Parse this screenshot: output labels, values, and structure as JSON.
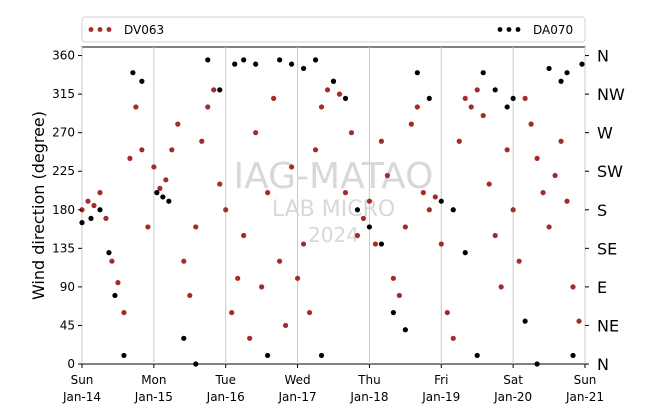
{
  "chart_data": {
    "type": "scatter",
    "title": "",
    "xlabel": "",
    "ylabel": "Wind direction (degree)",
    "xlim": [
      "2024-01-14 00:00",
      "2024-01-21 00:00"
    ],
    "ylim": [
      0,
      370
    ],
    "grid": "vertical lines at each day",
    "legend": "top, spanning plot width",
    "series": [
      {
        "name": "DV063",
        "color": "#a52a2a",
        "points": [
          [
            "2024-01-14 00:00",
            180
          ],
          [
            "2024-01-14 02:00",
            190
          ],
          [
            "2024-01-14 04:00",
            185
          ],
          [
            "2024-01-14 06:00",
            200
          ],
          [
            "2024-01-14 08:00",
            170
          ],
          [
            "2024-01-14 10:00",
            120
          ],
          [
            "2024-01-14 12:00",
            95
          ],
          [
            "2024-01-14 14:00",
            60
          ],
          [
            "2024-01-14 16:00",
            240
          ],
          [
            "2024-01-14 18:00",
            300
          ],
          [
            "2024-01-14 20:00",
            250
          ],
          [
            "2024-01-14 22:00",
            160
          ],
          [
            "2024-01-15 00:00",
            230
          ],
          [
            "2024-01-15 02:00",
            205
          ],
          [
            "2024-01-15 04:00",
            215
          ],
          [
            "2024-01-15 06:00",
            250
          ],
          [
            "2024-01-15 08:00",
            280
          ],
          [
            "2024-01-15 10:00",
            120
          ],
          [
            "2024-01-15 12:00",
            80
          ],
          [
            "2024-01-15 14:00",
            160
          ],
          [
            "2024-01-15 16:00",
            260
          ],
          [
            "2024-01-15 18:00",
            300
          ],
          [
            "2024-01-15 20:00",
            320
          ],
          [
            "2024-01-15 22:00",
            210
          ],
          [
            "2024-01-16 00:00",
            180
          ],
          [
            "2024-01-16 02:00",
            60
          ],
          [
            "2024-01-16 04:00",
            100
          ],
          [
            "2024-01-16 06:00",
            150
          ],
          [
            "2024-01-16 08:00",
            30
          ],
          [
            "2024-01-16 10:00",
            270
          ],
          [
            "2024-01-16 12:00",
            90
          ],
          [
            "2024-01-16 14:00",
            200
          ],
          [
            "2024-01-16 16:00",
            310
          ],
          [
            "2024-01-16 18:00",
            120
          ],
          [
            "2024-01-16 20:00",
            45
          ],
          [
            "2024-01-16 22:00",
            230
          ],
          [
            "2024-01-17 00:00",
            100
          ],
          [
            "2024-01-17 02:00",
            140
          ],
          [
            "2024-01-17 04:00",
            60
          ],
          [
            "2024-01-17 06:00",
            250
          ],
          [
            "2024-01-17 08:00",
            300
          ],
          [
            "2024-01-17 10:00",
            320
          ],
          [
            "2024-01-17 12:00",
            330
          ],
          [
            "2024-01-17 14:00",
            315
          ],
          [
            "2024-01-17 16:00",
            200
          ],
          [
            "2024-01-17 18:00",
            270
          ],
          [
            "2024-01-17 20:00",
            150
          ],
          [
            "2024-01-17 22:00",
            170
          ],
          [
            "2024-01-18 00:00",
            190
          ],
          [
            "2024-01-18 02:00",
            140
          ],
          [
            "2024-01-18 04:00",
            260
          ],
          [
            "2024-01-18 06:00",
            220
          ],
          [
            "2024-01-18 08:00",
            100
          ],
          [
            "2024-01-18 10:00",
            80
          ],
          [
            "2024-01-18 12:00",
            160
          ],
          [
            "2024-01-18 14:00",
            280
          ],
          [
            "2024-01-18 16:00",
            300
          ],
          [
            "2024-01-18 18:00",
            200
          ],
          [
            "2024-01-18 20:00",
            180
          ],
          [
            "2024-01-18 22:00",
            195
          ],
          [
            "2024-01-19 00:00",
            140
          ],
          [
            "2024-01-19 02:00",
            60
          ],
          [
            "2024-01-19 04:00",
            30
          ],
          [
            "2024-01-19 06:00",
            260
          ],
          [
            "2024-01-19 08:00",
            310
          ],
          [
            "2024-01-19 10:00",
            300
          ],
          [
            "2024-01-19 12:00",
            320
          ],
          [
            "2024-01-19 14:00",
            290
          ],
          [
            "2024-01-19 16:00",
            210
          ],
          [
            "2024-01-19 18:00",
            150
          ],
          [
            "2024-01-19 20:00",
            90
          ],
          [
            "2024-01-19 22:00",
            250
          ],
          [
            "2024-01-20 00:00",
            180
          ],
          [
            "2024-01-20 02:00",
            120
          ],
          [
            "2024-01-20 04:00",
            310
          ],
          [
            "2024-01-20 06:00",
            280
          ],
          [
            "2024-01-20 08:00",
            240
          ],
          [
            "2024-01-20 10:00",
            200
          ],
          [
            "2024-01-20 12:00",
            160
          ],
          [
            "2024-01-20 14:00",
            220
          ],
          [
            "2024-01-20 16:00",
            260
          ],
          [
            "2024-01-20 18:00",
            190
          ],
          [
            "2024-01-20 20:00",
            90
          ],
          [
            "2024-01-20 22:00",
            50
          ]
        ]
      },
      {
        "name": "DA070",
        "color": "#000000",
        "points": [
          [
            "2024-01-14 00:00",
            165
          ],
          [
            "2024-01-14 03:00",
            170
          ],
          [
            "2024-01-14 06:00",
            180
          ],
          [
            "2024-01-14 09:00",
            130
          ],
          [
            "2024-01-14 11:00",
            80
          ],
          [
            "2024-01-14 14:00",
            10
          ],
          [
            "2024-01-14 17:00",
            340
          ],
          [
            "2024-01-14 20:00",
            330
          ],
          [
            "2024-01-15 01:00",
            200
          ],
          [
            "2024-01-15 03:00",
            195
          ],
          [
            "2024-01-15 05:00",
            190
          ],
          [
            "2024-01-15 10:00",
            30
          ],
          [
            "2024-01-15 14:00",
            0
          ],
          [
            "2024-01-15 18:00",
            355
          ],
          [
            "2024-01-15 22:00",
            320
          ],
          [
            "2024-01-16 03:00",
            350
          ],
          [
            "2024-01-16 06:00",
            355
          ],
          [
            "2024-01-16 10:00",
            350
          ],
          [
            "2024-01-16 14:00",
            10
          ],
          [
            "2024-01-16 18:00",
            355
          ],
          [
            "2024-01-16 22:00",
            350
          ],
          [
            "2024-01-17 02:00",
            345
          ],
          [
            "2024-01-17 06:00",
            355
          ],
          [
            "2024-01-17 08:00",
            10
          ],
          [
            "2024-01-17 12:00",
            330
          ],
          [
            "2024-01-17 16:00",
            310
          ],
          [
            "2024-01-17 20:00",
            180
          ],
          [
            "2024-01-18 00:00",
            160
          ],
          [
            "2024-01-18 04:00",
            140
          ],
          [
            "2024-01-18 08:00",
            60
          ],
          [
            "2024-01-18 12:00",
            40
          ],
          [
            "2024-01-18 16:00",
            340
          ],
          [
            "2024-01-18 20:00",
            310
          ],
          [
            "2024-01-19 00:00",
            190
          ],
          [
            "2024-01-19 04:00",
            180
          ],
          [
            "2024-01-19 08:00",
            130
          ],
          [
            "2024-01-19 12:00",
            10
          ],
          [
            "2024-01-19 14:00",
            340
          ],
          [
            "2024-01-19 18:00",
            320
          ],
          [
            "2024-01-19 22:00",
            300
          ],
          [
            "2024-01-20 00:00",
            310
          ],
          [
            "2024-01-20 04:00",
            50
          ],
          [
            "2024-01-20 08:00",
            0
          ],
          [
            "2024-01-20 12:00",
            345
          ],
          [
            "2024-01-20 16:00",
            330
          ],
          [
            "2024-01-20 18:00",
            340
          ],
          [
            "2024-01-20 20:00",
            10
          ],
          [
            "2024-01-20 23:00",
            350
          ]
        ]
      }
    ],
    "y_ticks": [
      0,
      45,
      90,
      135,
      180,
      225,
      270,
      315,
      360
    ],
    "y_ticks_right": [
      "N",
      "NE",
      "E",
      "SE",
      "S",
      "SW",
      "W",
      "NW",
      "N"
    ],
    "x_ticks": [
      [
        "2024-01-14 00:00",
        "Sun",
        "Jan-14"
      ],
      [
        "2024-01-15 00:00",
        "Mon",
        "Jan-15"
      ],
      [
        "2024-01-16 00:00",
        "Tue",
        "Jan-16"
      ],
      [
        "2024-01-17 00:00",
        "Wed",
        "Jan-17"
      ],
      [
        "2024-01-18 00:00",
        "Thu",
        "Jan-18"
      ],
      [
        "2024-01-19 00:00",
        "Fri",
        "Jan-19"
      ],
      [
        "2024-01-20 00:00",
        "Sat",
        "Jan-20"
      ],
      [
        "2024-01-21 00:00",
        "Sun",
        "Jan-21"
      ]
    ],
    "watermark": [
      "IAG-MATAO",
      "LAB MICRO",
      "2024"
    ]
  }
}
